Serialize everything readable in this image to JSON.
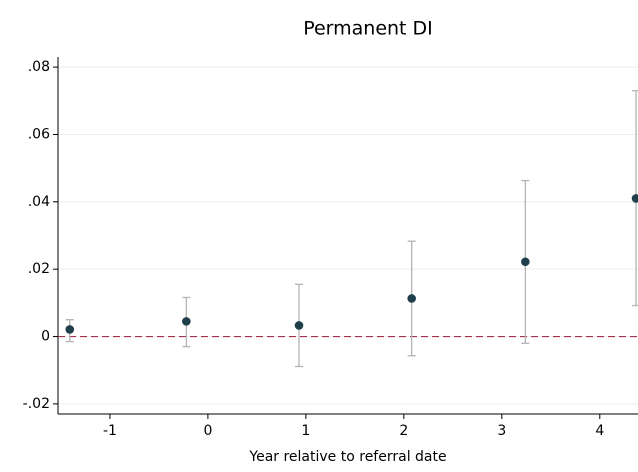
{
  "chart_data": {
    "type": "scatter",
    "title": "Permanent DI",
    "x_label": "Year relative to referral date",
    "series": [
      {
        "color": "#1f3f4a",
        "whisker_color": "#b4b4b4",
        "x": [
          -1.41,
          -0.22,
          0.93,
          2.08,
          3.24,
          4.37
        ],
        "values": [
          0.0021,
          0.0045,
          0.0033,
          0.0113,
          0.0222,
          0.041
        ],
        "lower": [
          -0.0015,
          -0.003,
          -0.0089,
          -0.0057,
          -0.002,
          0.0092
        ],
        "upper": [
          0.005,
          0.0116,
          0.0155,
          0.0283,
          0.0463,
          0.073
        ]
      }
    ],
    "reference_line": {
      "y": 0,
      "color": "#a0344a"
    },
    "xlim": [
      -1.53,
      4.39
    ],
    "xticks": [
      -1,
      0,
      1,
      2,
      3,
      4
    ],
    "ylim": [
      -0.023,
      0.083
    ],
    "yticks": [
      {
        "value": -0.02,
        "label": "-.02"
      },
      {
        "value": 0,
        "label": "0"
      },
      {
        "value": 0.02,
        "label": ".02"
      },
      {
        "value": 0.04,
        "label": ".04"
      },
      {
        "value": 0.06,
        "label": ".06"
      },
      {
        "value": 0.08,
        "label": ".08"
      }
    ],
    "grid": true
  }
}
